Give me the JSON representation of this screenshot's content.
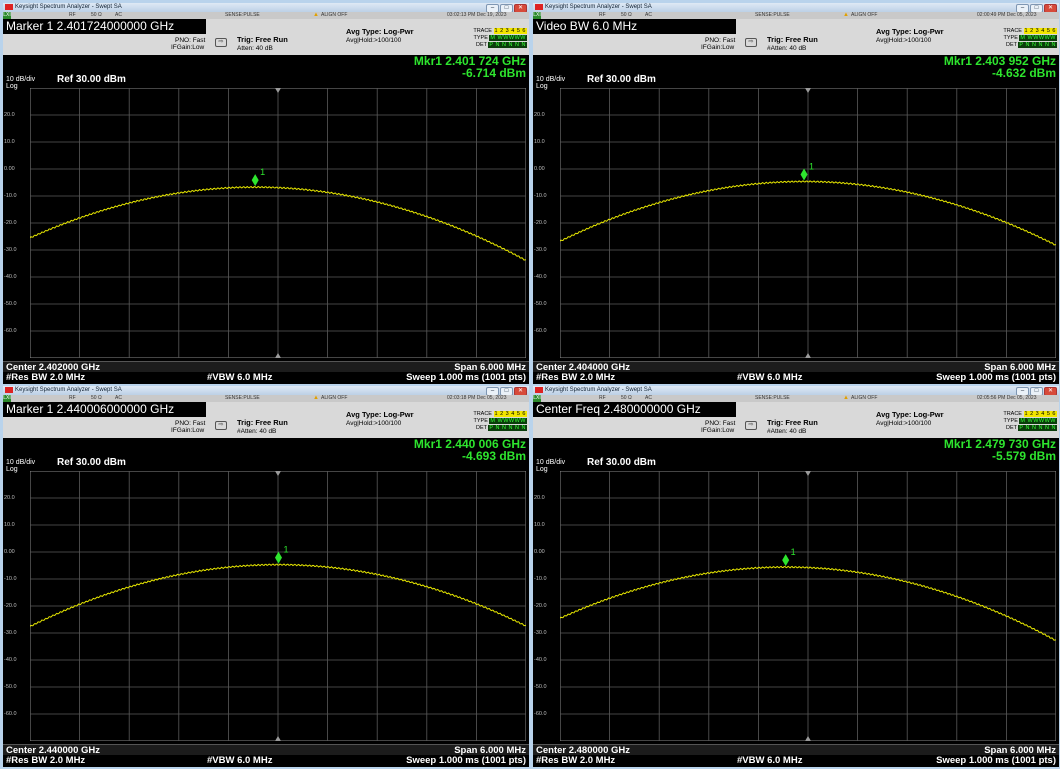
{
  "colors": {
    "trace": "#e6e600",
    "marker": "#2ee52e",
    "grid": "#5a5a5a",
    "background": "#000000",
    "desktop": "#b9d3ec"
  },
  "windows": [
    {
      "title": "Keysight Spectrum Analyzer - Swept SA",
      "status": {
        "rf": "RF",
        "ohms": "50 Ω",
        "ac": "AC",
        "sense": "SENSE:PULSE",
        "align": "ALIGN OFF",
        "datetime": "03:02:13 PM Dec 19, 2023"
      },
      "active_function": "Marker 1 2.401724000000 GHz",
      "pno": "PNO: Fast",
      "ifgain": "IFGain:Low",
      "trig": "Trig: Free Run",
      "atten": "Atten: 40 dB",
      "avg_type": "Avg Type: Log-Pwr",
      "avg_hold": "Avg|Hold:>100/100",
      "trace_label": "TRACE",
      "trace_seq": "1 2 3 4 5 6",
      "type_label": "TYPE",
      "type_seq": "M WWWWW",
      "det_label": "DET",
      "det_seq": "P N N N N N",
      "marker_freq": "Mkr1 2.401 724 GHz",
      "marker_amp": "-6.714 dBm",
      "scale": "10 dB/div",
      "log": "Log",
      "ref": "Ref 30.00 dBm",
      "center": "Center 2.402000 GHz",
      "span": "Span 6.000 MHz",
      "res_bw": "#Res BW 2.0 MHz",
      "vbw": "#VBW 6.0 MHz",
      "sweep": "Sweep  1.000 ms (1001 pts)",
      "yticks": [
        "20.0",
        "10.0",
        "0.00",
        "-10.0",
        "-20.0",
        "-30.0",
        "-40.0",
        "-50.0",
        "-60.0"
      ],
      "marker_label": "1",
      "peak_dbm": -6.714,
      "peak_offset_mhz": -0.276,
      "edge_dbm": -29.5
    },
    {
      "title": "Keysight Spectrum Analyzer - Swept SA",
      "status": {
        "rf": "RF",
        "ohms": "50 Ω",
        "ac": "AC",
        "sense": "SENSE:PULSE",
        "align": "ALIGN OFF",
        "datetime": "02:00:49 PM Dec 05, 2023"
      },
      "active_function": "Video BW 6.0 MHz",
      "pno": "PNO: Fast",
      "ifgain": "IFGain:Low",
      "trig": "Trig: Free Run",
      "atten": "#Atten: 40 dB",
      "avg_type": "Avg Type: Log-Pwr",
      "avg_hold": "Avg|Hold:>100/100",
      "trace_label": "TRACE",
      "trace_seq": "1 2 3 4 5 6",
      "type_label": "TYPE",
      "type_seq": "M WWWWW",
      "det_label": "DET",
      "det_seq": "P N N N N N",
      "marker_freq": "Mkr1 2.403 952 GHz",
      "marker_amp": "-4.632 dBm",
      "scale": "10 dB/div",
      "log": "Log",
      "ref": "Ref 30.00 dBm",
      "center": "Center 2.404000 GHz",
      "span": "Span 6.000 MHz",
      "res_bw": "#Res BW 2.0 MHz",
      "vbw": "#VBW 6.0 MHz",
      "sweep": "Sweep  1.000 ms (1001 pts)",
      "yticks": [
        "20.0",
        "10.0",
        "0.00",
        "-10.0",
        "-20.0",
        "-30.0",
        "-40.0",
        "-50.0",
        "-60.0"
      ],
      "marker_label": "1",
      "peak_dbm": -4.632,
      "peak_offset_mhz": -0.048,
      "edge_dbm": -27.5
    },
    {
      "title": "Keysight Spectrum Analyzer - Swept SA",
      "status": {
        "rf": "RF",
        "ohms": "50 Ω",
        "ac": "AC",
        "sense": "SENSE:PULSE",
        "align": "ALIGN OFF",
        "datetime": "02:03:18 PM Dec 05, 2023"
      },
      "active_function": "Marker 1 2.440006000000 GHz",
      "pno": "PNO: Fast",
      "ifgain": "IFGain:Low",
      "trig": "Trig: Free Run",
      "atten": "#Atten: 40 dB",
      "avg_type": "Avg Type: Log-Pwr",
      "avg_hold": "Avg|Hold:>100/100",
      "trace_label": "TRACE",
      "trace_seq": "1 2 3 4 5 6",
      "type_label": "TYPE",
      "type_seq": "M WWWWW",
      "det_label": "DET",
      "det_seq": "P N N N N N",
      "marker_freq": "Mkr1 2.440 006 GHz",
      "marker_amp": "-4.693 dBm",
      "scale": "10 dB/div",
      "log": "Log",
      "ref": "Ref 30.00 dBm",
      "center": "Center 2.440000 GHz",
      "span": "Span 6.000 MHz",
      "res_bw": "#Res BW 2.0 MHz",
      "vbw": "#VBW 6.0 MHz",
      "sweep": "Sweep  1.000 ms (1001 pts)",
      "yticks": [
        "20.0",
        "10.0",
        "0.00",
        "-10.0",
        "-20.0",
        "-30.0",
        "-40.0",
        "-50.0",
        "-60.0"
      ],
      "marker_label": "1",
      "peak_dbm": -4.693,
      "peak_offset_mhz": 0.006,
      "edge_dbm": -27.5
    },
    {
      "title": "Keysight Spectrum Analyzer - Swept SA",
      "status": {
        "rf": "RF",
        "ohms": "50 Ω",
        "ac": "AC",
        "sense": "SENSE:PULSE",
        "align": "ALIGN OFF",
        "datetime": "02:05:56 PM Dec 05, 2023"
      },
      "active_function": "Center Freq 2.480000000 GHz",
      "pno": "PNO: Fast",
      "ifgain": "IFGain:Low",
      "trig": "Trig: Free Run",
      "atten": "#Atten: 40 dB",
      "avg_type": "Avg Type: Log-Pwr",
      "avg_hold": "Avg|Hold:>100/100",
      "trace_label": "TRACE",
      "trace_seq": "1 2 3 4 5 6",
      "type_label": "TYPE",
      "type_seq": "M WWWWW",
      "det_label": "DET",
      "det_seq": "P N N N N N",
      "marker_freq": "Mkr1 2.479 730 GHz",
      "marker_amp": "-5.579 dBm",
      "scale": "10 dB/div",
      "log": "Log",
      "ref": "Ref 30.00 dBm",
      "center": "Center 2.480000 GHz",
      "span": "Span 6.000 MHz",
      "res_bw": "#Res BW 2.0 MHz",
      "vbw": "#VBW 6.0 MHz",
      "sweep": "Sweep  1.000 ms (1001 pts)",
      "yticks": [
        "20.0",
        "10.0",
        "0.00",
        "-10.0",
        "-20.0",
        "-30.0",
        "-40.0",
        "-50.0",
        "-60.0"
      ],
      "marker_label": "1",
      "peak_dbm": -5.579,
      "peak_offset_mhz": -0.27,
      "edge_dbm": -28.5
    }
  ]
}
